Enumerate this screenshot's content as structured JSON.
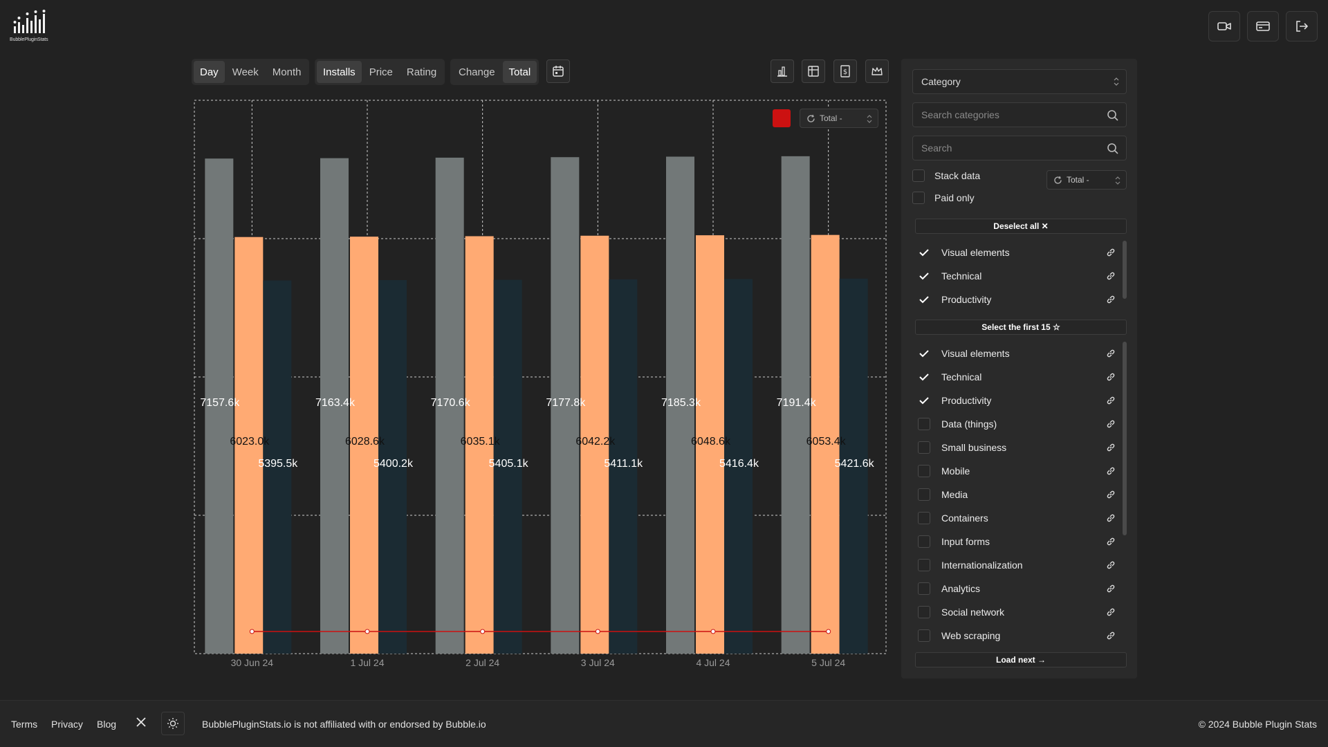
{
  "app": {
    "logo_text": "BubblePluginStats"
  },
  "toolbar": {
    "period": [
      {
        "label": "Day",
        "active": true
      },
      {
        "label": "Week",
        "active": false
      },
      {
        "label": "Month",
        "active": false
      }
    ],
    "metric": [
      {
        "label": "Installs",
        "active": true
      },
      {
        "label": "Price",
        "active": false
      },
      {
        "label": "Rating",
        "active": false
      }
    ],
    "mode": [
      {
        "label": "Change",
        "active": false
      },
      {
        "label": "Total",
        "active": true
      }
    ]
  },
  "chart_legend": {
    "select_value": "Total -",
    "swatch_color": "#cc1111"
  },
  "chart_data": {
    "type": "bar",
    "categories": [
      "30 Jun 24",
      "1 Jul 24",
      "2 Jul 24",
      "3 Jul 24",
      "4 Jul 24",
      "5 Jul 24"
    ],
    "series": [
      {
        "color": "#727878",
        "values": [
          7157.6,
          7163.4,
          7170.6,
          7177.8,
          7185.3,
          7191.4
        ],
        "labels": [
          "7157.6k",
          "7163.4k",
          "7170.6k",
          "7177.8k",
          "7185.3k",
          "7191.4k"
        ],
        "label_color": "#ffffff"
      },
      {
        "color": "#ffaa73",
        "values": [
          6023.0,
          6028.6,
          6035.1,
          6042.2,
          6048.6,
          6053.4
        ],
        "labels": [
          "6023.0k",
          "6028.6k",
          "6035.1k",
          "6042.2k",
          "6048.6k",
          "6053.4k"
        ],
        "label_color": "#111111"
      },
      {
        "color": "#1b2b33",
        "values": [
          5395.5,
          5400.2,
          5405.1,
          5411.1,
          5416.4,
          5421.6
        ],
        "labels": [
          "5395.5k",
          "5400.2k",
          "5405.1k",
          "5411.1k",
          "5416.4k",
          "5421.6k"
        ],
        "label_color": "#ffffff"
      },
      {
        "type": "line",
        "color": "#cc1111",
        "values": [
          0,
          0,
          0,
          0,
          0,
          0
        ]
      }
    ],
    "ylim": [
      0,
      8000
    ],
    "grid": true,
    "legend": "top-right"
  },
  "sidebar": {
    "category_select": "Category",
    "search_categories_placeholder": "Search categories",
    "search_placeholder": "Search",
    "stack_data_label": "Stack data",
    "paid_only_label": "Paid only",
    "stack_select_value": "Total -",
    "deselect_all_label": "Deselect all ✕",
    "selected": [
      "Visual elements",
      "Technical",
      "Productivity"
    ],
    "select_first_label": "Select the first 15 ☆",
    "categories": [
      {
        "label": "Visual elements",
        "checked": true
      },
      {
        "label": "Technical",
        "checked": true
      },
      {
        "label": "Productivity",
        "checked": true
      },
      {
        "label": "Data (things)",
        "checked": false
      },
      {
        "label": "Small business",
        "checked": false
      },
      {
        "label": "Mobile",
        "checked": false
      },
      {
        "label": "Media",
        "checked": false
      },
      {
        "label": "Containers",
        "checked": false
      },
      {
        "label": "Input forms",
        "checked": false
      },
      {
        "label": "Internationalization",
        "checked": false
      },
      {
        "label": "Analytics",
        "checked": false
      },
      {
        "label": "Social network",
        "checked": false
      },
      {
        "label": "Web scraping",
        "checked": false
      }
    ],
    "load_next_label": "Load next →"
  },
  "footer": {
    "terms": "Terms",
    "privacy": "Privacy",
    "blog": "Blog",
    "disclaimer": "BubblePluginStats.io is not affiliated with or endorsed by Bubble.io",
    "copyright": "© 2024 Bubble Plugin Stats"
  }
}
